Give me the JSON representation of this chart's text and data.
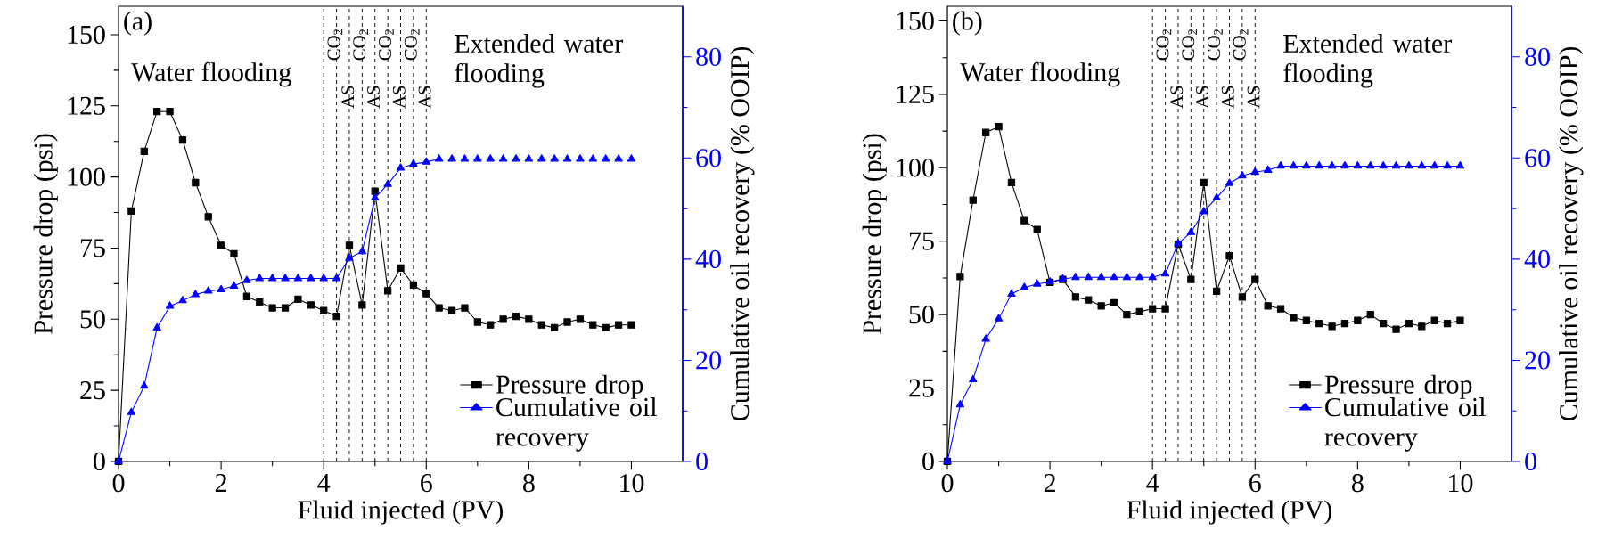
{
  "chart_data": [
    {
      "type": "line",
      "title": "(a)",
      "xlabel": "Fluid injected (PV)",
      "ylabel": "Pressure drop (psi)",
      "y2label": "Cumulative oil recovery (% OOIP)",
      "x": [
        0,
        0.25,
        0.5,
        0.75,
        1,
        1.25,
        1.5,
        1.75,
        2,
        2.25,
        2.5,
        2.75,
        3,
        3.25,
        3.5,
        3.75,
        4,
        4.25,
        4.5,
        4.75,
        5,
        5.25,
        5.5,
        5.75,
        6,
        6.25,
        6.5,
        6.75,
        7,
        7.25,
        7.5,
        7.75,
        8,
        8.25,
        8.5,
        8.75,
        9,
        9.25,
        9.5,
        9.75,
        10
      ],
      "series": [
        {
          "name": "Pressure drop",
          "color": "#000000",
          "marker": "square",
          "values": [
            0,
            88,
            109,
            123,
            123,
            113,
            98,
            86,
            76,
            73,
            58,
            56,
            54,
            54,
            57,
            55,
            53,
            51,
            76,
            55,
            95,
            60,
            68,
            62,
            59,
            54,
            53,
            54,
            49,
            48,
            50,
            51,
            50,
            48,
            47,
            49,
            50,
            48,
            47,
            48,
            48
          ]
        },
        {
          "name": "Cumulative oil recovery",
          "color": "#0000ff",
          "marker": "triangle",
          "axis": "y2",
          "values": [
            0,
            9.7,
            14.9,
            26.4,
            30.7,
            31.8,
            33.0,
            33.7,
            34.0,
            34.7,
            35.8,
            36.2,
            36.2,
            36.2,
            36.2,
            36.2,
            36.2,
            36.2,
            40.2,
            41.5,
            52.1,
            54.8,
            58.0,
            58.8,
            59.2,
            59.8,
            59.8,
            59.8,
            59.8,
            59.8,
            59.8,
            59.8,
            59.8,
            59.8,
            59.8,
            59.8,
            59.8,
            59.8,
            59.8,
            59.8,
            59.8
          ]
        }
      ],
      "xlim": [
        0,
        11
      ],
      "xticks": [
        0,
        2,
        4,
        6,
        8,
        10
      ],
      "ylim": [
        0,
        160
      ],
      "yticks": [
        0,
        25,
        50,
        75,
        100,
        125,
        150
      ],
      "y2lim": [
        0,
        90
      ],
      "y2ticks": [
        0,
        20,
        40,
        60,
        80
      ],
      "ref_lines": [
        {
          "axis": "x",
          "value": 4,
          "label": "CO$_{2}$",
          "line_style": "dashed"
        },
        {
          "axis": "x",
          "value": 4.25,
          "label": "AS",
          "line_style": "dashed"
        },
        {
          "axis": "x",
          "value": 4.5,
          "label": "CO$_{2}$",
          "line_style": "dashed"
        },
        {
          "axis": "x",
          "value": 4.75,
          "label": "AS",
          "line_style": "dashed"
        },
        {
          "axis": "x",
          "value": 5,
          "label": "CO$_{2}$",
          "line_style": "dashed"
        },
        {
          "axis": "x",
          "value": 5.25,
          "label": "AS",
          "line_style": "dashed"
        },
        {
          "axis": "x",
          "value": 5.5,
          "label": "CO$_{2}$",
          "line_style": "dashed"
        },
        {
          "axis": "x",
          "value": 5.75,
          "label": "AS",
          "line_style": "dashed"
        },
        {
          "axis": "x",
          "value": 6,
          "line_style": "dashed"
        }
      ],
      "annotations": [
        "Water flooding",
        "Extended water flooding"
      ],
      "legend": "bottom right",
      "line_style": "solid"
    },
    {
      "type": "line",
      "title": "(b)",
      "xlabel": "Fluid injected (PV)",
      "ylabel": "Pressure drop (psi)",
      "y2label": "Cumulative oil recovery (% OOIP)",
      "x": [
        0,
        0.25,
        0.5,
        0.75,
        1,
        1.25,
        1.5,
        1.75,
        2,
        2.25,
        2.5,
        2.75,
        3,
        3.25,
        3.5,
        3.75,
        4,
        4.25,
        4.5,
        4.75,
        5,
        5.25,
        5.5,
        5.75,
        6,
        6.25,
        6.5,
        6.75,
        7,
        7.25,
        7.5,
        7.75,
        8,
        8.25,
        8.5,
        8.75,
        9,
        9.25,
        9.5,
        9.75,
        10
      ],
      "series": [
        {
          "name": "Pressure drop",
          "color": "#000000",
          "marker": "square",
          "values": [
            0,
            63,
            89,
            112,
            114,
            95,
            82,
            79,
            61,
            62,
            56,
            55,
            53,
            54,
            50,
            51,
            52,
            52,
            74,
            62,
            95,
            58,
            70,
            56,
            62,
            53,
            52,
            49,
            48,
            47,
            46,
            47,
            48,
            50,
            47,
            45,
            47,
            46,
            48,
            47,
            48
          ]
        },
        {
          "name": "Cumulative oil recovery",
          "color": "#0000ff",
          "marker": "triangle",
          "axis": "y2",
          "values": [
            0,
            11.2,
            16.2,
            24.2,
            28.2,
            33.1,
            34.4,
            35.1,
            35.5,
            36.1,
            36.4,
            36.4,
            36.4,
            36.4,
            36.4,
            36.4,
            36.4,
            37.1,
            43.1,
            45.3,
            49.4,
            52.1,
            55.0,
            56.5,
            57.2,
            57.6,
            58.4,
            58.4,
            58.4,
            58.4,
            58.4,
            58.4,
            58.4,
            58.4,
            58.4,
            58.4,
            58.4,
            58.4,
            58.4,
            58.4,
            58.4
          ]
        }
      ],
      "xlim": [
        0,
        11
      ],
      "xticks": [
        0,
        2,
        4,
        6,
        8,
        10
      ],
      "ylim": [
        0,
        155
      ],
      "yticks": [
        0,
        25,
        50,
        75,
        100,
        125,
        150
      ],
      "y2lim": [
        0,
        90
      ],
      "y2ticks": [
        0,
        20,
        40,
        60,
        80
      ],
      "ref_lines": [
        {
          "axis": "x",
          "value": 4,
          "label": "CO$_{2}$",
          "line_style": "dashed"
        },
        {
          "axis": "x",
          "value": 4.25,
          "label": "AS",
          "line_style": "dashed"
        },
        {
          "axis": "x",
          "value": 4.5,
          "label": "CO$_{2}$",
          "line_style": "dashed"
        },
        {
          "axis": "x",
          "value": 4.75,
          "label": "AS",
          "line_style": "dashed"
        },
        {
          "axis": "x",
          "value": 5,
          "label": "CO$_{2}$",
          "line_style": "dashed"
        },
        {
          "axis": "x",
          "value": 5.25,
          "label": "AS",
          "line_style": "dashed"
        },
        {
          "axis": "x",
          "value": 5.5,
          "label": "CO$_{2}$",
          "line_style": "dashed"
        },
        {
          "axis": "x",
          "value": 5.75,
          "label": "AS",
          "line_style": "dashed"
        },
        {
          "axis": "x",
          "value": 6,
          "line_style": "dashed"
        }
      ],
      "annotations": [
        "Water flooding",
        "Extended water flooding"
      ],
      "legend": "bottom right",
      "line_style": "solid"
    }
  ]
}
